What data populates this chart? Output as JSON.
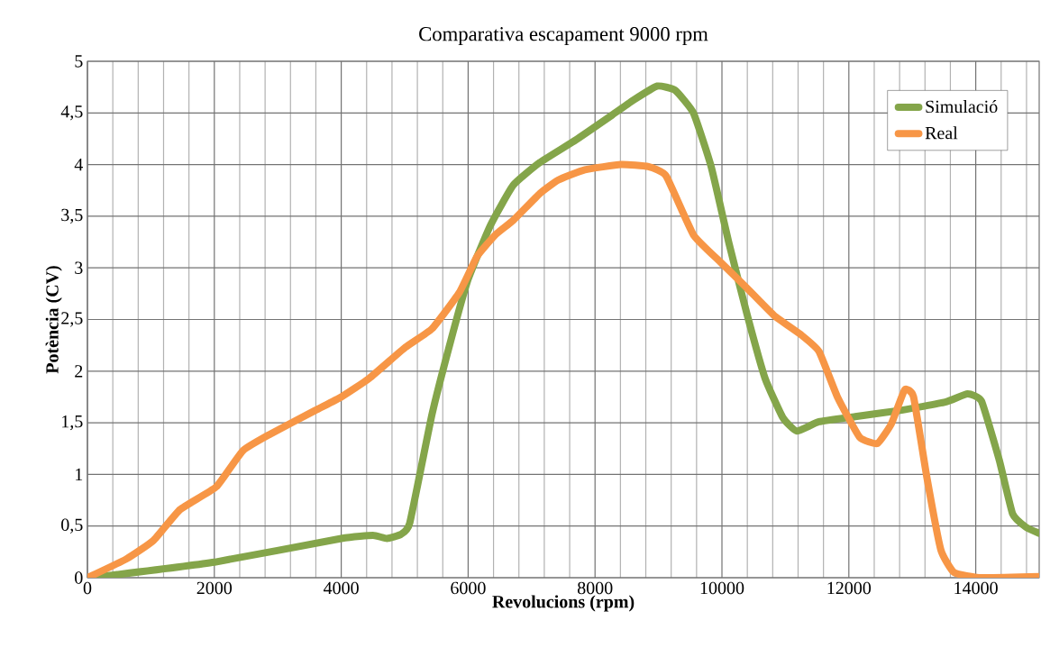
{
  "chart_data": {
    "type": "line",
    "title": "Comparativa escapament 9000 rpm",
    "xlabel": "Revolucions (rpm)",
    "ylabel": "Potència (CV)",
    "xlim": [
      0,
      15000
    ],
    "ylim": [
      0,
      5
    ],
    "xticks": [
      0,
      {
        "value": 400,
        "label": null
      },
      {
        "value": 800,
        "label": null
      },
      {
        "value": 1200,
        "label": null
      },
      {
        "value": 1600,
        "label": null
      },
      2000,
      {
        "value": 2400,
        "label": null
      },
      {
        "value": 2800,
        "label": null
      },
      {
        "value": 3200,
        "label": null
      },
      {
        "value": 3600,
        "label": null
      },
      4000,
      {
        "value": 4400,
        "label": null
      },
      {
        "value": 4800,
        "label": null
      },
      {
        "value": 5200,
        "label": null
      },
      {
        "value": 5600,
        "label": null
      },
      6000,
      {
        "value": 6400,
        "label": null
      },
      {
        "value": 6800,
        "label": null
      },
      {
        "value": 7200,
        "label": null
      },
      {
        "value": 7600,
        "label": null
      },
      8000,
      {
        "value": 8400,
        "label": null
      },
      {
        "value": 8800,
        "label": null
      },
      {
        "value": 9200,
        "label": null
      },
      {
        "value": 9600,
        "label": null
      },
      10000,
      {
        "value": 10400,
        "label": null
      },
      {
        "value": 10800,
        "label": null
      },
      {
        "value": 11200,
        "label": null
      },
      {
        "value": 11600,
        "label": null
      },
      12000,
      {
        "value": 12400,
        "label": null
      },
      {
        "value": 12800,
        "label": null
      },
      {
        "value": 13200,
        "label": null
      },
      {
        "value": 13600,
        "label": null
      },
      14000,
      {
        "value": 14400,
        "label": null
      },
      {
        "value": 14800,
        "label": null
      }
    ],
    "yticks": [
      0,
      {
        "value": 0.5,
        "label": "0,5"
      },
      1,
      {
        "value": 1.5,
        "label": "1,5"
      },
      2,
      {
        "value": 2.5,
        "label": "2,5"
      },
      3,
      {
        "value": 3.5,
        "label": "3,5"
      },
      4,
      {
        "value": 4.5,
        "label": "4,5"
      },
      5
    ],
    "grid": true,
    "legend": "top right",
    "marker": "none",
    "line_style": "solid",
    "series": [
      {
        "name": "Simulació",
        "color": "#84a54a",
        "x": [
          0,
          470,
          2000,
          4000,
          4500,
          4720,
          4940,
          5080,
          5430,
          5720,
          6000,
          6350,
          6710,
          7130,
          7700,
          8270,
          8620,
          8980,
          9260,
          9550,
          9830,
          10110,
          10400,
          10680,
          10960,
          11180,
          11530,
          12100,
          12810,
          13520,
          13870,
          14090,
          14370,
          14580,
          14790,
          15000
        ],
        "values": [
          0,
          0.03,
          0.15,
          0.38,
          0.41,
          0.38,
          0.42,
          0.53,
          1.58,
          2.28,
          2.89,
          3.41,
          3.8,
          4.02,
          4.24,
          4.48,
          4.63,
          4.76,
          4.72,
          4.5,
          3.98,
          3.24,
          2.54,
          1.93,
          1.55,
          1.42,
          1.51,
          1.56,
          1.62,
          1.7,
          1.78,
          1.71,
          1.14,
          0.62,
          0.49,
          0.43
        ]
      },
      {
        "name": "Real",
        "color": "#f79646",
        "x": [
          0,
          610,
          1040,
          1460,
          2030,
          2450,
          2880,
          3590,
          4000,
          4440,
          5010,
          5430,
          5860,
          6140,
          6430,
          6710,
          7130,
          7420,
          7840,
          8410,
          8840,
          9120,
          9550,
          9970,
          10400,
          10820,
          11250,
          11530,
          11820,
          12170,
          12450,
          12670,
          12880,
          13020,
          13230,
          13450,
          13660,
          14090,
          15000
        ],
        "values": [
          0,
          0.18,
          0.36,
          0.66,
          0.88,
          1.23,
          1.39,
          1.62,
          1.75,
          1.93,
          2.23,
          2.41,
          2.76,
          3.11,
          3.32,
          3.46,
          3.72,
          3.85,
          3.95,
          4.0,
          3.98,
          3.89,
          3.32,
          3.06,
          2.8,
          2.54,
          2.35,
          2.19,
          1.75,
          1.36,
          1.3,
          1.49,
          1.82,
          1.75,
          0.97,
          0.27,
          0.05,
          0,
          0.01
        ]
      }
    ]
  }
}
